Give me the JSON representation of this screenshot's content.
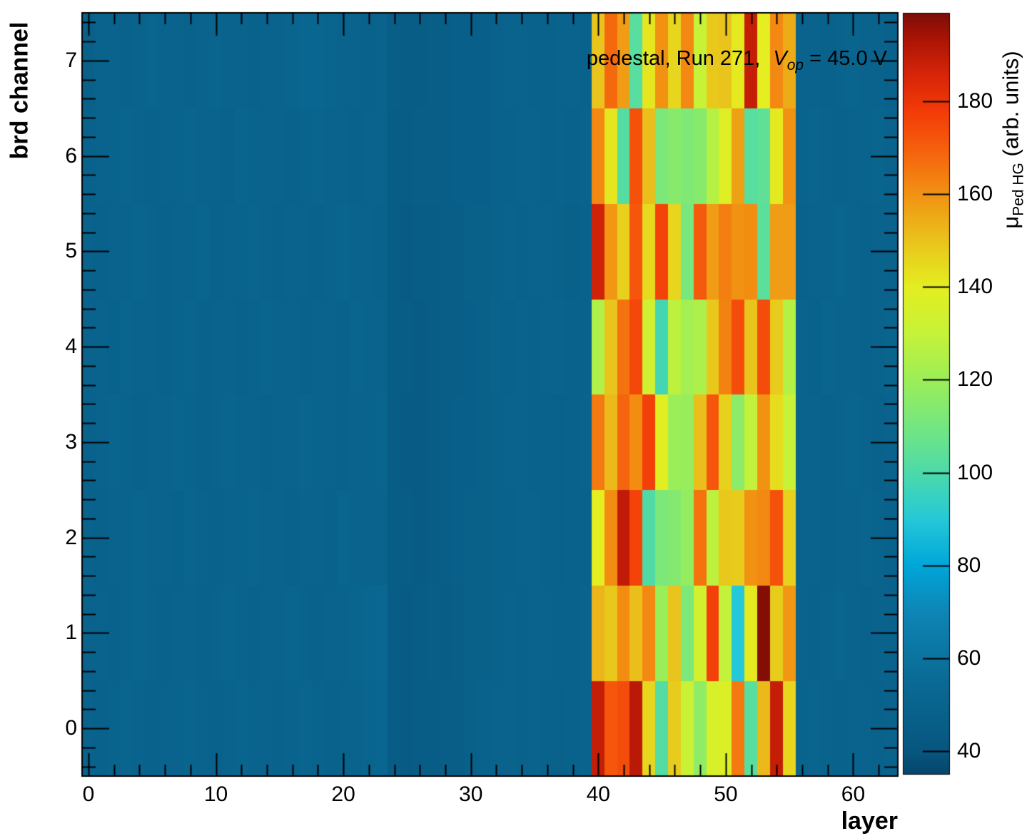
{
  "figure": {
    "annotation": {
      "prefix": "pedestal, Run 271, ",
      "v_symbol": "V",
      "v_subscript": "op",
      "suffix": " = 45.0 V"
    },
    "axes": {
      "x_label": "layer",
      "y_label": "brd channel",
      "x_ticks": [
        0,
        10,
        20,
        30,
        40,
        50,
        60
      ],
      "y_ticks": [
        0,
        1,
        2,
        3,
        4,
        5,
        6,
        7
      ]
    },
    "colorbar": {
      "title_mu": "μ",
      "title_sub": "Ped HG",
      "title_units": " (arb. units)",
      "ticks": [
        40,
        60,
        80,
        100,
        120,
        140,
        160,
        180
      ],
      "zmin": 35,
      "zmax": 199
    }
  },
  "chart_data": {
    "type": "heatmap",
    "title": "pedestal, Run 271, V_op = 45.0 V",
    "xlabel": "layer",
    "ylabel": "brd channel",
    "zlabel": "mu_Ped HG (arb. units)",
    "x_range": [
      -0.5,
      63.5
    ],
    "y_range": [
      -0.5,
      7.5
    ],
    "z_range": [
      35,
      199
    ],
    "x_bins": 64,
    "y_bins": 8,
    "grid": false,
    "rows_order": "index i = brd channel i (bottom row first)",
    "palette_stops": [
      [
        35,
        "#06456b"
      ],
      [
        40,
        "#07567f"
      ],
      [
        55,
        "#0a6a94"
      ],
      [
        70,
        "#0e85b5"
      ],
      [
        80,
        "#00a6d8"
      ],
      [
        90,
        "#25c8d8"
      ],
      [
        100,
        "#4cdaaa"
      ],
      [
        110,
        "#74e681"
      ],
      [
        120,
        "#9cee58"
      ],
      [
        130,
        "#c6f238"
      ],
      [
        140,
        "#e4ee20"
      ],
      [
        150,
        "#e9c41c"
      ],
      [
        160,
        "#f29213"
      ],
      [
        170,
        "#f55f0d"
      ],
      [
        178,
        "#f33a08"
      ],
      [
        186,
        "#d62408"
      ],
      [
        193,
        "#ad1505"
      ],
      [
        199,
        "#7c0d06"
      ]
    ],
    "values": [
      [
        50,
        49,
        50,
        51,
        50,
        49,
        50,
        50,
        51,
        50,
        49,
        50,
        51,
        50,
        50,
        49,
        50,
        51,
        50,
        49,
        50,
        50,
        51,
        52,
        45,
        44,
        45,
        45,
        46,
        46,
        48,
        49,
        50,
        50,
        49,
        50,
        49,
        48,
        49,
        50,
        189,
        172,
        174,
        191,
        146,
        102,
        148,
        131,
        117,
        136,
        137,
        165,
        103,
        152,
        189,
        146,
        50,
        51,
        50,
        49,
        50,
        50,
        49,
        50
      ],
      [
        50,
        50,
        49,
        50,
        51,
        50,
        49,
        50,
        50,
        49,
        50,
        51,
        50,
        49,
        50,
        50,
        51,
        50,
        49,
        50,
        50,
        51,
        52,
        53,
        45,
        44,
        45,
        46,
        45,
        46,
        48,
        48,
        49,
        50,
        49,
        50,
        50,
        49,
        49,
        50,
        153,
        149,
        161,
        151,
        162,
        120,
        150,
        112,
        134,
        177,
        129,
        90,
        141,
        198,
        148,
        159,
        50,
        49,
        50,
        51,
        50,
        49,
        50,
        50
      ],
      [
        50,
        49,
        50,
        50,
        51,
        50,
        50,
        49,
        51,
        50,
        49,
        50,
        50,
        51,
        50,
        50,
        49,
        50,
        50,
        49,
        51,
        50,
        50,
        50,
        45,
        45,
        44,
        45,
        46,
        47,
        48,
        48,
        49,
        49,
        50,
        50,
        49,
        48,
        49,
        49,
        140,
        161,
        190,
        176,
        101,
        112,
        114,
        118,
        166,
        128,
        149,
        148,
        160,
        162,
        173,
        147,
        50,
        50,
        49,
        50,
        50,
        51,
        50,
        49
      ],
      [
        49,
        50,
        51,
        50,
        49,
        50,
        50,
        51,
        50,
        49,
        50,
        51,
        50,
        50,
        49,
        50,
        50,
        51,
        50,
        50,
        49,
        50,
        50,
        51,
        45,
        44,
        44,
        45,
        46,
        47,
        47,
        48,
        49,
        50,
        50,
        49,
        49,
        48,
        49,
        50,
        165,
        152,
        169,
        161,
        177,
        139,
        120,
        119,
        151,
        172,
        147,
        116,
        129,
        160,
        144,
        130,
        50,
        50,
        49,
        50,
        51,
        50,
        49,
        50
      ],
      [
        50,
        50,
        49,
        51,
        50,
        50,
        49,
        50,
        51,
        49,
        50,
        50,
        49,
        50,
        51,
        50,
        50,
        49,
        50,
        50,
        49,
        51,
        50,
        50,
        45,
        45,
        44,
        45,
        46,
        46,
        47,
        48,
        50,
        49,
        50,
        49,
        50,
        50,
        49,
        49,
        125,
        150,
        166,
        175,
        133,
        98,
        128,
        122,
        124,
        149,
        163,
        174,
        150,
        174,
        148,
        126,
        50,
        49,
        51,
        50,
        50,
        49,
        50,
        51
      ],
      [
        50,
        49,
        50,
        50,
        51,
        50,
        49,
        50,
        50,
        51,
        49,
        50,
        50,
        51,
        50,
        49,
        50,
        50,
        49,
        50,
        51,
        50,
        50,
        49,
        45,
        44,
        45,
        45,
        46,
        46,
        48,
        48,
        49,
        50,
        49,
        50,
        50,
        49,
        48,
        49,
        187,
        159,
        147,
        172,
        145,
        176,
        146,
        111,
        171,
        158,
        164,
        160,
        161,
        104,
        158,
        158,
        49,
        50,
        50,
        51,
        50,
        49,
        50,
        50
      ],
      [
        49,
        50,
        50,
        51,
        50,
        49,
        50,
        50,
        51,
        50,
        50,
        49,
        51,
        50,
        50,
        50,
        49,
        50,
        51,
        50,
        50,
        49,
        50,
        50,
        45,
        45,
        46,
        46,
        46,
        47,
        47,
        47,
        49,
        49,
        50,
        50,
        49,
        50,
        49,
        50,
        162,
        142,
        102,
        173,
        151,
        112,
        115,
        113,
        115,
        126,
        138,
        157,
        103,
        105,
        141,
        160,
        50,
        51,
        50,
        49,
        50,
        50,
        51,
        50
      ],
      [
        48,
        50,
        50,
        49,
        50,
        51,
        50,
        50,
        49,
        50,
        51,
        50,
        50,
        49,
        50,
        50,
        51,
        52,
        52,
        51,
        50,
        50,
        49,
        50,
        46,
        45,
        45,
        46,
        46,
        47,
        47,
        47,
        49,
        50,
        50,
        49,
        49,
        50,
        50,
        49,
        150,
        168,
        158,
        103,
        142,
        160,
        146,
        162,
        130,
        149,
        150,
        141,
        189,
        140,
        162,
        155,
        50,
        50,
        49,
        50,
        51,
        50,
        50,
        49
      ]
    ]
  }
}
